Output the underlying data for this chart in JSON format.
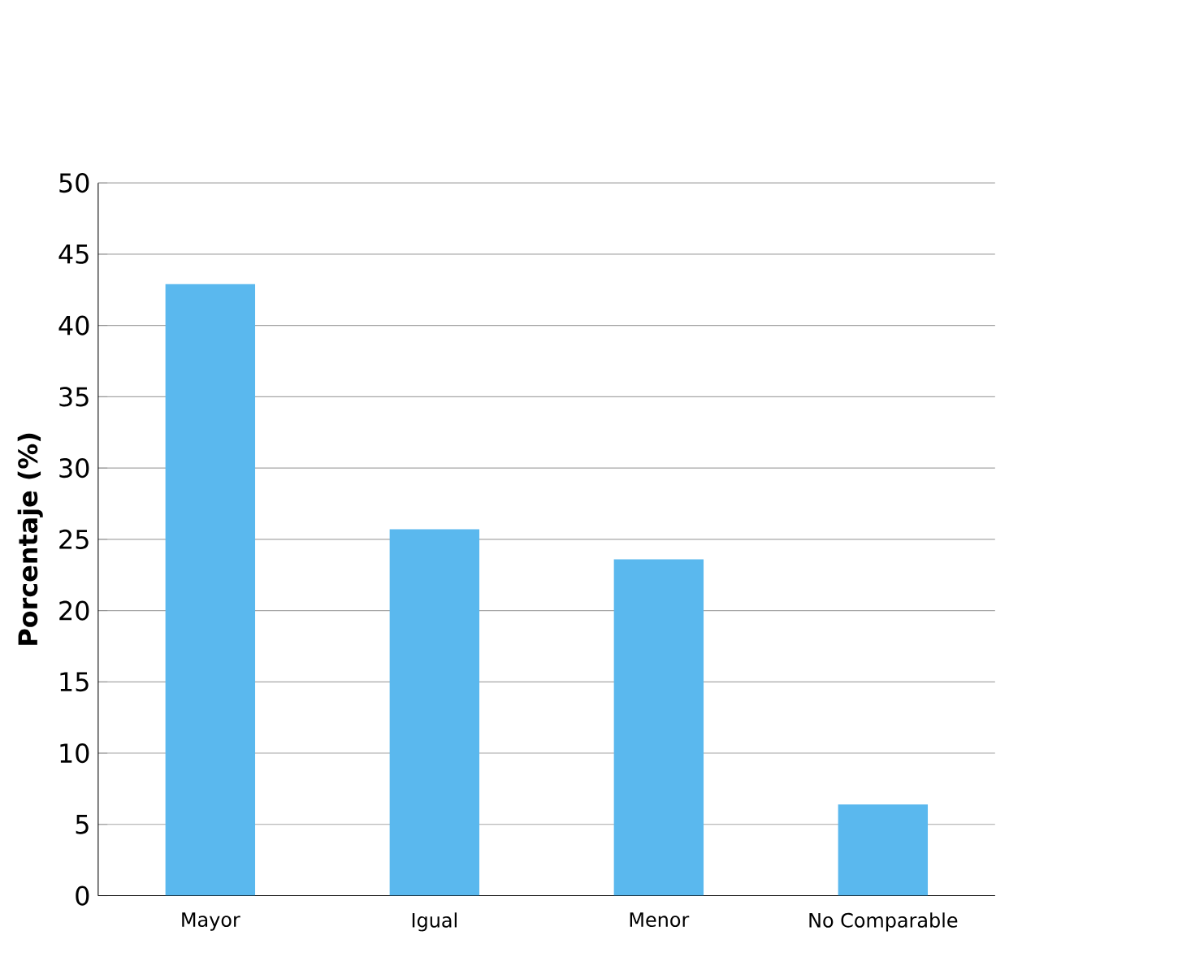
{
  "chart_data": {
    "type": "bar",
    "ylabel": "Porcentaje (%)",
    "categories": [
      "Mayor",
      "Igual",
      "Menor",
      "No Comparable"
    ],
    "values": [
      42.9,
      25.7,
      23.6,
      6.4
    ],
    "color": "#5ab8ee",
    "ylim": [
      0,
      50
    ],
    "yticks": [
      0,
      5,
      10,
      15,
      20,
      25,
      30,
      35,
      40,
      45,
      50
    ],
    "grid": "y"
  }
}
